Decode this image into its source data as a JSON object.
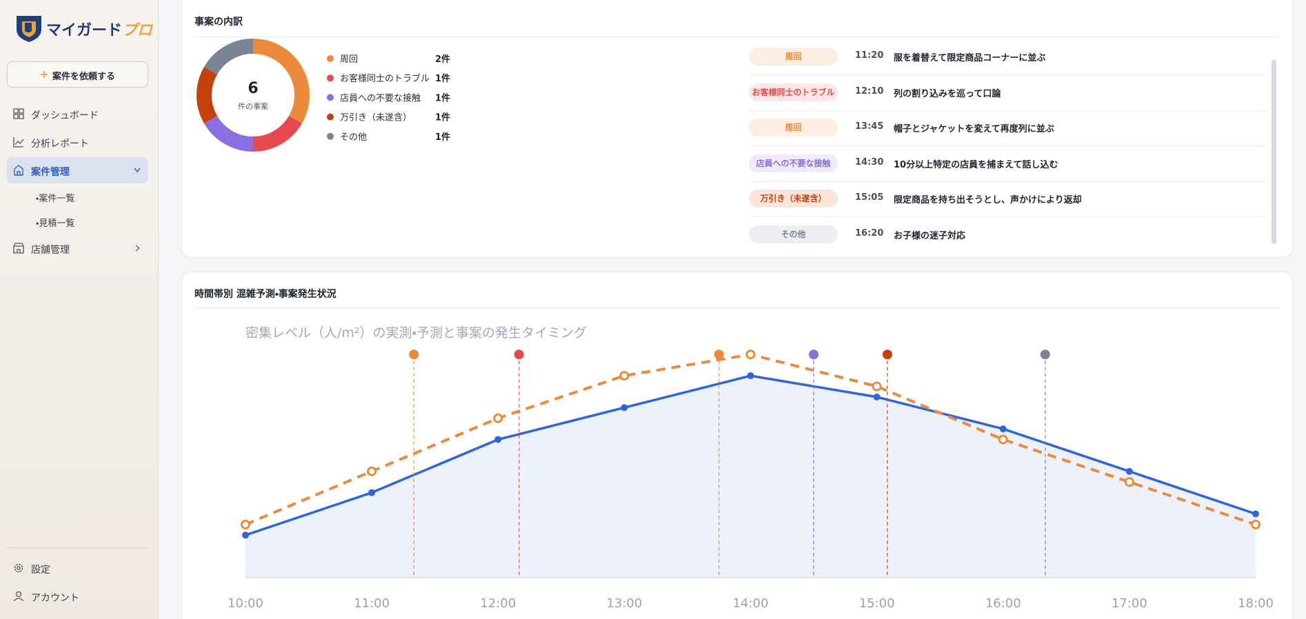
{
  "sidebar": {
    "logo": {
      "main": "マイガード",
      "accent": "プロ"
    },
    "request_button": "案件を依頼する",
    "nav": [
      "ダッシュボード",
      "分析レポート",
      "案件管理",
      "店舗管理"
    ],
    "sub_nav": [
      "・案件一覧",
      "・見積一覧"
    ],
    "footer_nav": [
      "設定",
      "アカウント"
    ]
  },
  "breakdown": {
    "title": "事案の内訳"
  },
  "timeline": {
    "title": "時間帯別 混雑予測・事案発生状況"
  },
  "incidents": [
    {
      "category": "周回",
      "time": "11:20",
      "description": "服を着替えて限定商品コーナーに並ぶ",
      "color": "#ec8a3c",
      "background": "#fdeee3"
    },
    {
      "category": "お客様同士のトラブル",
      "time": "12:10",
      "description": "列の割り込みを巡って口論",
      "color": "#e5484d",
      "background": "#fde6e6"
    },
    {
      "category": "周回",
      "time": "13:45",
      "description": "帽子とジャケットを変えて再度列に並ぶ",
      "color": "#ec8a3c",
      "background": "#fdeee3"
    },
    {
      "category": "店員への不要な接触",
      "time": "14:30",
      "description": "10分以上特定の店員を捕まえて話し込む",
      "color": "#8b6fe0",
      "background": "#efeafc"
    },
    {
      "category": "万引き（未遂含）",
      "time": "15:05",
      "description": "限定商品を持ち出そうとし、声かけにより返却",
      "color": "#c2410c",
      "background": "#fbe5da"
    },
    {
      "category": "その他",
      "time": "16:20",
      "description": "お子様の迷子対応",
      "color": "#7c8394",
      "background": "#eceef2"
    }
  ],
  "chart_data": [
    {
      "type": "pie",
      "donut": true,
      "total": 6,
      "center_label": "件の事案",
      "categories": [
        "周回",
        "お客様同士のトラブル",
        "店員への不要な接触",
        "万引き（未遂含）",
        "その他"
      ],
      "values": [
        2,
        1,
        1,
        1,
        1
      ],
      "value_labels": [
        "2件",
        "1件",
        "1件",
        "1件",
        "1件"
      ],
      "colors": [
        "#ec8a3c",
        "#e5484d",
        "#8b6fe0",
        "#c2410c",
        "#7c8394"
      ]
    },
    {
      "type": "line",
      "title": "密集レベル（人/m²）の実測・予測と事案の発生タイミング",
      "x": [
        600,
        660,
        720,
        780,
        840,
        900,
        960,
        1020,
        1080
      ],
      "xlim": [
        600,
        1080
      ],
      "xticks": [
        {
          "value": 600,
          "label": "10:00"
        },
        {
          "value": 660,
          "label": "11:00"
        },
        {
          "value": 720,
          "label": "12:00"
        },
        {
          "value": 780,
          "label": "13:00"
        },
        {
          "value": 840,
          "label": "14:00"
        },
        {
          "value": 900,
          "label": "15:00"
        },
        {
          "value": 960,
          "label": "16:00"
        },
        {
          "value": 1020,
          "label": "17:00"
        },
        {
          "value": 1080,
          "label": "18:00"
        }
      ],
      "ylim": [
        0,
        6
      ],
      "series": [
        {
          "color": "#2f64db",
          "style": "solid",
          "area": true,
          "values": [
            1.0,
            2.0,
            3.25,
            4.0,
            4.75,
            4.25,
            3.5,
            2.5,
            1.5
          ]
        },
        {
          "color": "#ec8a3c",
          "style": "dashed",
          "area": false,
          "values": [
            1.25,
            2.5,
            3.75,
            4.75,
            5.25,
            4.5,
            3.25,
            2.25,
            1.25
          ]
        }
      ],
      "events": [
        {
          "x": 680,
          "color": "#ec8a3c"
        },
        {
          "x": 730,
          "color": "#e5484d"
        },
        {
          "x": 825,
          "color": "#ec8a3c"
        },
        {
          "x": 870,
          "color": "#8b6fe0"
        },
        {
          "x": 905,
          "color": "#c2410c"
        },
        {
          "x": 980,
          "color": "#7c8394"
        }
      ]
    }
  ]
}
